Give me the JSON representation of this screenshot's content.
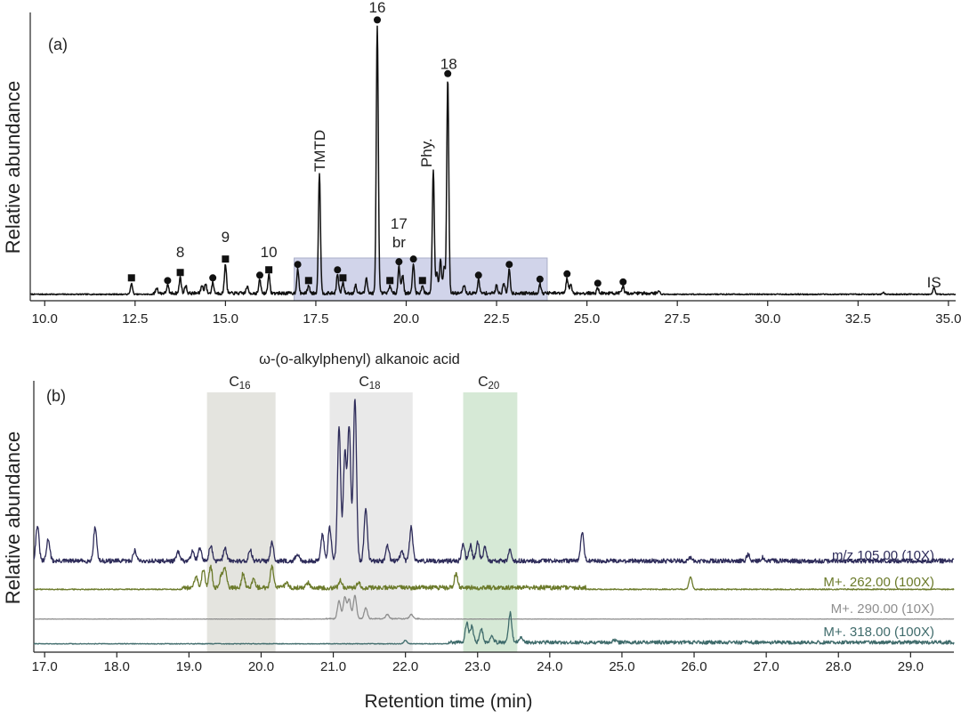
{
  "figure": {
    "xlabel": "Retention time (min)"
  },
  "chart_data": [
    {
      "type": "line",
      "panel_label": "(a)",
      "ylabel": "Relative abundance",
      "xlabel": "",
      "xlim": [
        9.6,
        35.2
      ],
      "ylim": [
        0,
        100
      ],
      "xticks": [
        "10.0",
        "12.5",
        "15.0",
        "17.5",
        "20.0",
        "22.5",
        "25.0",
        "27.5",
        "30.0",
        "32.5",
        "35.0"
      ],
      "shaded_region": {
        "x": [
          16.9,
          23.9
        ],
        "color": "#c9cde6"
      },
      "baseline": 1.2,
      "peaks": [
        {
          "x": 12.4,
          "y": 4,
          "marker": "square"
        },
        {
          "x": 13.1,
          "y": 2
        },
        {
          "x": 13.4,
          "y": 3,
          "marker": "circle"
        },
        {
          "x": 13.75,
          "y": 6,
          "marker": "square",
          "label": "8"
        },
        {
          "x": 13.9,
          "y": 3
        },
        {
          "x": 14.35,
          "y": 3
        },
        {
          "x": 14.45,
          "y": 3.5
        },
        {
          "x": 14.65,
          "y": 4,
          "marker": "circle"
        },
        {
          "x": 15.0,
          "y": 11,
          "marker": "square",
          "label": "9"
        },
        {
          "x": 15.6,
          "y": 2.5
        },
        {
          "x": 15.95,
          "y": 5,
          "marker": "circle"
        },
        {
          "x": 16.2,
          "y": 7,
          "marker": "square",
          "label": "10"
        },
        {
          "x": 17.0,
          "y": 9,
          "marker": "circle"
        },
        {
          "x": 17.3,
          "y": 3,
          "marker": "square"
        },
        {
          "x": 17.6,
          "y": 45,
          "label": "TMTD"
        },
        {
          "x": 18.1,
          "y": 7,
          "marker": "circle"
        },
        {
          "x": 18.25,
          "y": 4,
          "marker": "square"
        },
        {
          "x": 18.6,
          "y": 3
        },
        {
          "x": 18.9,
          "y": 6
        },
        {
          "x": 19.2,
          "y": 100,
          "marker": "circle",
          "label": "16"
        },
        {
          "x": 19.55,
          "y": 3,
          "marker": "square"
        },
        {
          "x": 19.8,
          "y": 10,
          "marker": "circle",
          "label": "17 br"
        },
        {
          "x": 19.9,
          "y": 7
        },
        {
          "x": 20.2,
          "y": 11,
          "marker": "circle"
        },
        {
          "x": 20.45,
          "y": 3,
          "marker": "square"
        },
        {
          "x": 20.75,
          "y": 46,
          "label": "Phy."
        },
        {
          "x": 20.85,
          "y": 8
        },
        {
          "x": 20.95,
          "y": 13
        },
        {
          "x": 21.05,
          "y": 10
        },
        {
          "x": 21.15,
          "y": 80,
          "marker": "circle",
          "label": "18"
        },
        {
          "x": 21.6,
          "y": 3
        },
        {
          "x": 22.0,
          "y": 5,
          "marker": "circle"
        },
        {
          "x": 22.5,
          "y": 3
        },
        {
          "x": 22.7,
          "y": 4
        },
        {
          "x": 22.85,
          "y": 9,
          "marker": "circle"
        },
        {
          "x": 23.7,
          "y": 3.5,
          "marker": "circle"
        },
        {
          "x": 24.45,
          "y": 5.5,
          "marker": "circle"
        },
        {
          "x": 24.55,
          "y": 3.5
        },
        {
          "x": 25.3,
          "y": 2,
          "marker": "circle"
        },
        {
          "x": 26.0,
          "y": 2.5,
          "marker": "circle"
        },
        {
          "x": 27.0,
          "y": 1.0
        },
        {
          "x": 33.2,
          "y": 0.7
        },
        {
          "x": 34.6,
          "y": 2.5,
          "label": "IS"
        }
      ],
      "peak_labels": {
        "16": "16",
        "18": "18",
        "TMTD": "TMTD",
        "Phy": "Phy.",
        "p17": "17",
        "br": "br",
        "p8": "8",
        "p9": "9",
        "p10": "10",
        "IS": "IS"
      }
    },
    {
      "type": "line",
      "panel_label": "(b)",
      "ylabel": "Relative abundance",
      "xlabel": "Retention time (min)",
      "xlim": [
        16.85,
        29.6
      ],
      "xticks": [
        "17.0",
        "18.0",
        "19.0",
        "20.0",
        "21.0",
        "22.0",
        "23.0",
        "24.0",
        "25.0",
        "26.0",
        "27.0",
        "28.0",
        "29.0"
      ],
      "header": "ω-(o-alkylphenyl) alkanoic acid",
      "bands": [
        {
          "label": "C",
          "subscript": "16",
          "x": [
            19.25,
            20.2
          ],
          "color": "#e4e4df"
        },
        {
          "label": "C",
          "subscript": "18",
          "x": [
            20.95,
            22.1
          ],
          "color": "#e9e9e9"
        },
        {
          "label": "C",
          "subscript": "20",
          "x": [
            22.8,
            23.55
          ],
          "color": "#d6e9d6"
        }
      ],
      "series": [
        {
          "name": "m/z 105.00 (10X)",
          "color": "#2e2c5a",
          "peaks": [
            {
              "x": 16.9,
              "y": 40
            },
            {
              "x": 17.05,
              "y": 25
            },
            {
              "x": 17.7,
              "y": 38
            },
            {
              "x": 18.25,
              "y": 12
            },
            {
              "x": 18.85,
              "y": 10
            },
            {
              "x": 19.05,
              "y": 12
            },
            {
              "x": 19.15,
              "y": 14
            },
            {
              "x": 19.3,
              "y": 18
            },
            {
              "x": 19.5,
              "y": 15
            },
            {
              "x": 19.85,
              "y": 12
            },
            {
              "x": 20.15,
              "y": 22
            },
            {
              "x": 20.5,
              "y": 8
            },
            {
              "x": 20.85,
              "y": 30
            },
            {
              "x": 20.95,
              "y": 38
            },
            {
              "x": 21.08,
              "y": 150
            },
            {
              "x": 21.16,
              "y": 120
            },
            {
              "x": 21.22,
              "y": 150
            },
            {
              "x": 21.3,
              "y": 182
            },
            {
              "x": 21.45,
              "y": 60
            },
            {
              "x": 21.75,
              "y": 18
            },
            {
              "x": 21.95,
              "y": 12
            },
            {
              "x": 22.08,
              "y": 38
            },
            {
              "x": 22.8,
              "y": 20
            },
            {
              "x": 22.9,
              "y": 18
            },
            {
              "x": 23.0,
              "y": 22
            },
            {
              "x": 23.1,
              "y": 16
            },
            {
              "x": 23.45,
              "y": 13
            },
            {
              "x": 24.45,
              "y": 32
            },
            {
              "x": 25.95,
              "y": 4
            },
            {
              "x": 26.75,
              "y": 7
            },
            {
              "x": 26.95,
              "y": 4
            }
          ]
        },
        {
          "name": "M+. 262.00 (100X)",
          "color": "#6b7a2a",
          "peaks": [
            {
              "x": 19.1,
              "y": 12
            },
            {
              "x": 19.2,
              "y": 20
            },
            {
              "x": 19.3,
              "y": 24
            },
            {
              "x": 19.45,
              "y": 14
            },
            {
              "x": 19.5,
              "y": 22
            },
            {
              "x": 19.75,
              "y": 16
            },
            {
              "x": 19.9,
              "y": 10
            },
            {
              "x": 20.15,
              "y": 24
            },
            {
              "x": 20.35,
              "y": 6
            },
            {
              "x": 20.65,
              "y": 6
            },
            {
              "x": 21.1,
              "y": 8
            },
            {
              "x": 21.35,
              "y": 6
            },
            {
              "x": 22.7,
              "y": 16
            },
            {
              "x": 25.95,
              "y": 14
            }
          ]
        },
        {
          "name": "M+. 290.00 (10X)",
          "color": "#8f8f8f",
          "peaks": [
            {
              "x": 21.08,
              "y": 20
            },
            {
              "x": 21.16,
              "y": 24
            },
            {
              "x": 21.22,
              "y": 22
            },
            {
              "x": 21.3,
              "y": 26
            },
            {
              "x": 21.45,
              "y": 12
            },
            {
              "x": 21.75,
              "y": 5
            },
            {
              "x": 22.08,
              "y": 5
            }
          ]
        },
        {
          "name": "M+. 318.00 (100X)",
          "color": "#3f6b6b",
          "peaks": [
            {
              "x": 22.0,
              "y": 4
            },
            {
              "x": 22.85,
              "y": 22
            },
            {
              "x": 22.92,
              "y": 18
            },
            {
              "x": 23.05,
              "y": 16
            },
            {
              "x": 23.2,
              "y": 7
            },
            {
              "x": 23.45,
              "y": 33
            },
            {
              "x": 23.6,
              "y": 6
            },
            {
              "x": 24.9,
              "y": 3
            }
          ]
        }
      ]
    }
  ]
}
